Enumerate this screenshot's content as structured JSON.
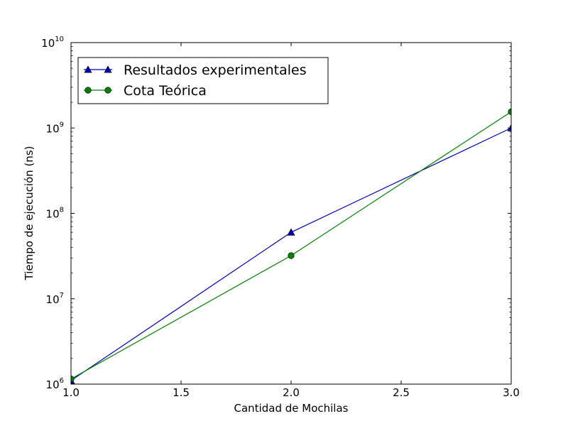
{
  "chart_data": {
    "type": "line",
    "title": "",
    "xlabel": "Cantidad de Mochilas",
    "ylabel": "Tiempo de ejecución (ns)",
    "x_scale": "linear",
    "y_scale": "log",
    "xlim": [
      1.0,
      3.0
    ],
    "ylim": [
      1000000,
      10000000000
    ],
    "x_ticks": [
      1.0,
      1.5,
      2.0,
      2.5,
      3.0
    ],
    "x_tick_labels": [
      "1.0",
      "1.5",
      "2.0",
      "2.5",
      "3.0"
    ],
    "y_ticks": [
      1000000,
      10000000,
      100000000,
      1000000000,
      10000000000
    ],
    "y_tick_labels": [
      {
        "base": "10",
        "exp": "6"
      },
      {
        "base": "10",
        "exp": "7"
      },
      {
        "base": "10",
        "exp": "8"
      },
      {
        "base": "10",
        "exp": "9"
      },
      {
        "base": "10",
        "exp": "10"
      }
    ],
    "grid": false,
    "legend_position": "top-left",
    "series": [
      {
        "name": "Resultados experimentales",
        "color": "#0000b3",
        "marker": "triangle",
        "x": [
          1.0,
          2.0,
          3.0
        ],
        "y": [
          1100000,
          60000000,
          1000000000
        ]
      },
      {
        "name": "Cota Teórica",
        "color": "#007f00",
        "marker": "circle",
        "x": [
          1.0,
          2.0,
          3.0
        ],
        "y": [
          1150000,
          32000000,
          1550000000
        ]
      }
    ]
  }
}
